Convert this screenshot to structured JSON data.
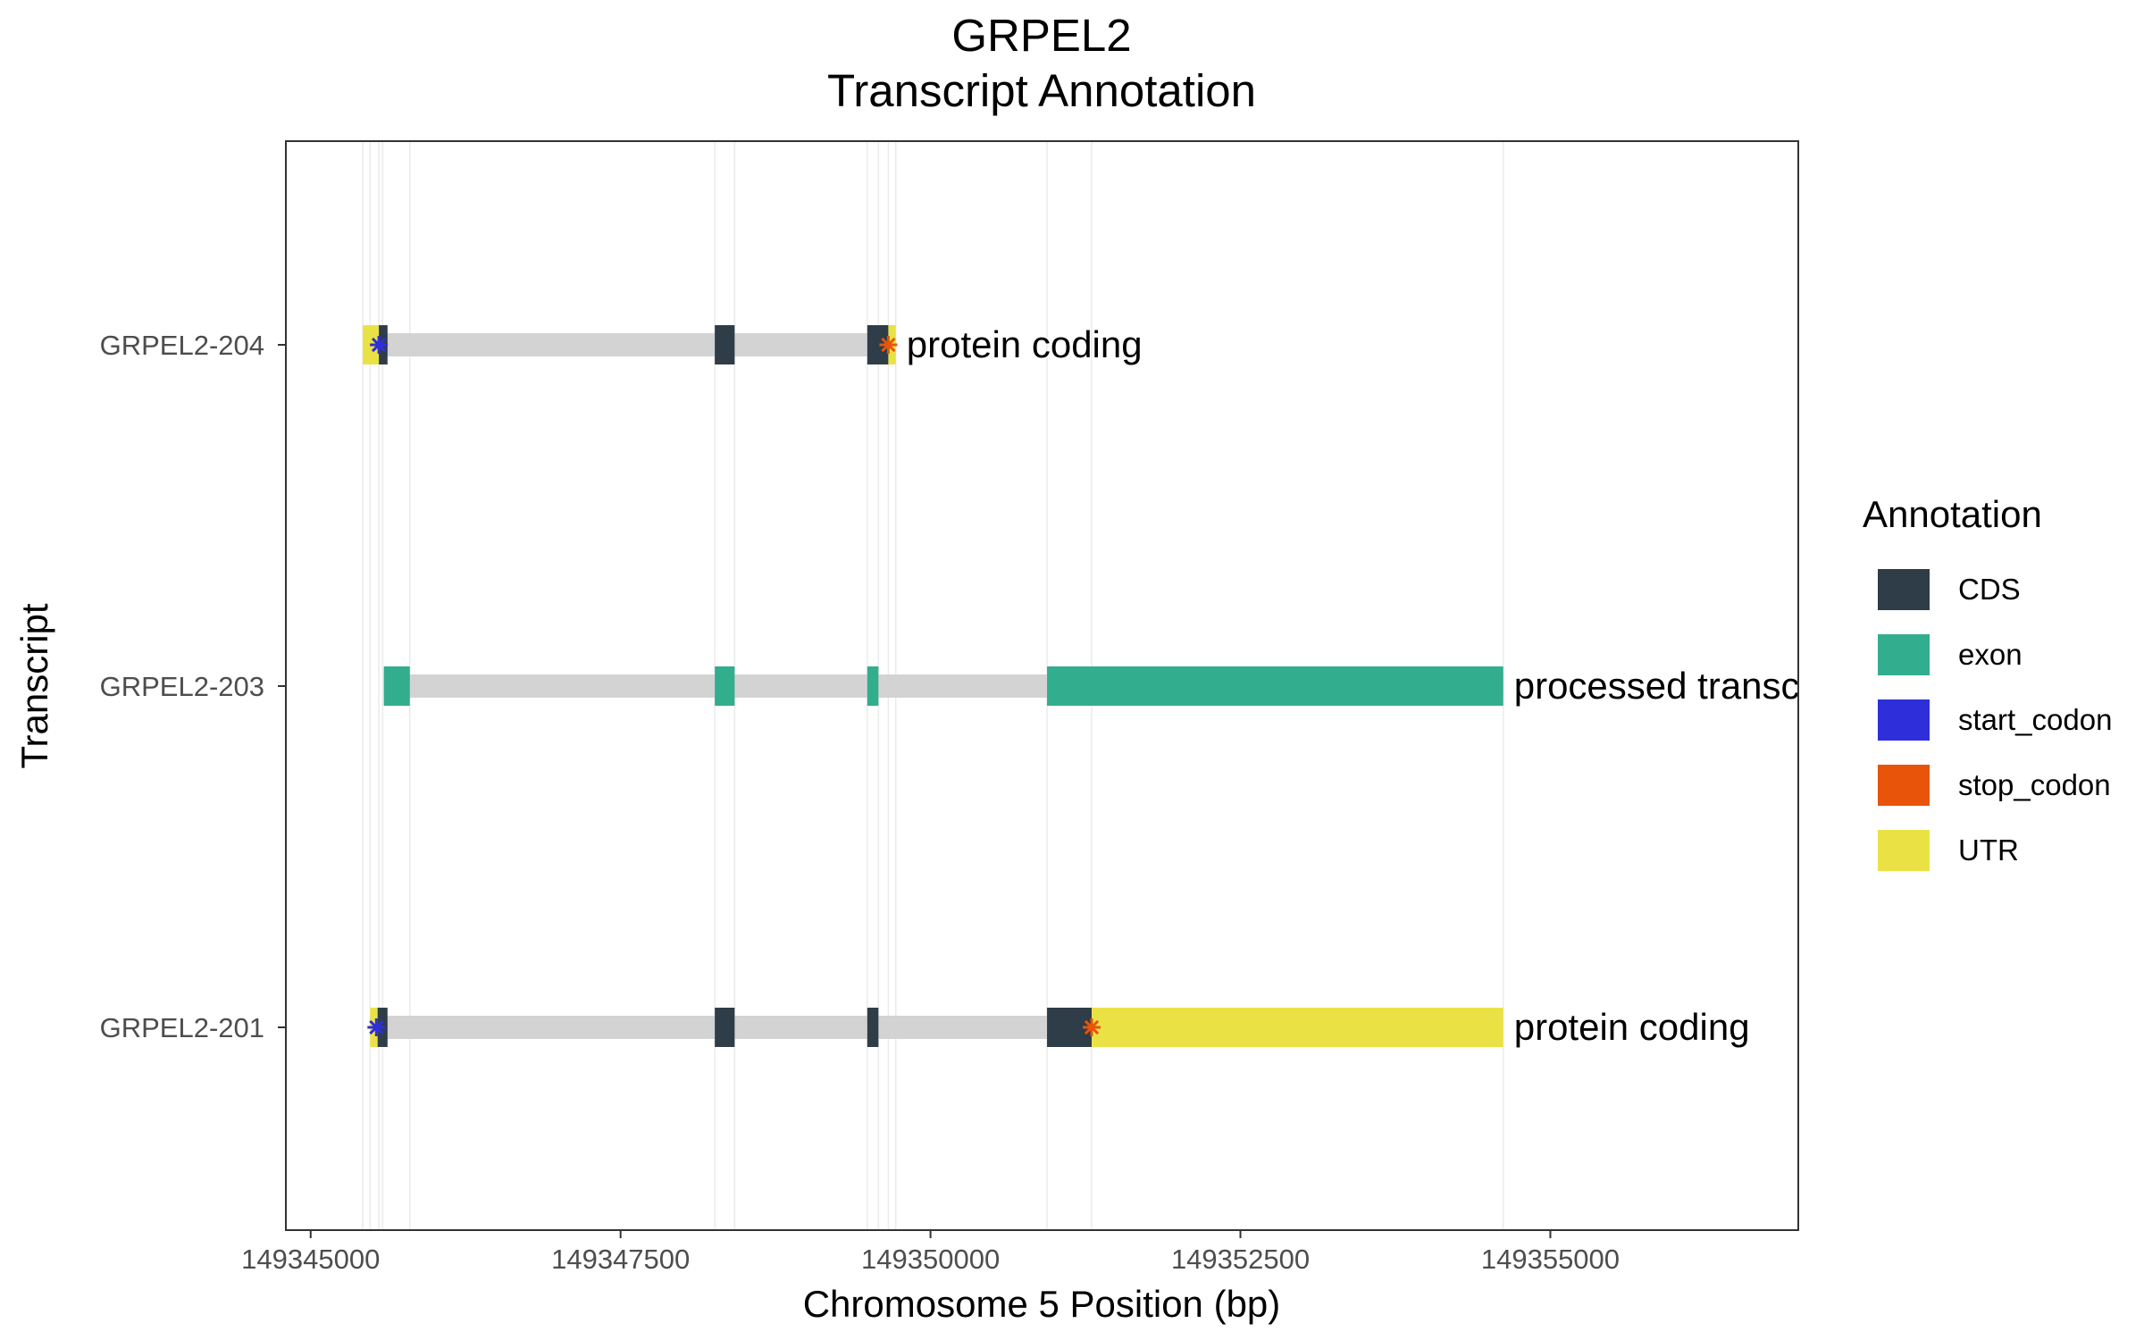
{
  "chart_data": {
    "type": "gene-structure",
    "title": [
      "GRPEL2",
      "Transcript Annotation"
    ],
    "xlabel": "Chromosome 5 Position (bp)",
    "ylabel": "Transcript",
    "xlim": [
      149344800,
      149357000
    ],
    "x_ticks": [
      149345000,
      149347500,
      149350000,
      149352500,
      149355000
    ],
    "x_tick_labels": [
      "149345000",
      "149347500",
      "149350000",
      "149352500",
      "149355000"
    ],
    "vertical_gridlines_bp": [
      149345420,
      149345480,
      149345550,
      149345580,
      149345800,
      149348260,
      149348420,
      149349490,
      149349580,
      149349660,
      149349720,
      149350940,
      149351300,
      149354620
    ],
    "legend": {
      "title": "Annotation",
      "position": "right",
      "items": [
        {
          "label": "CDS",
          "color": "#2E3D48"
        },
        {
          "label": "exon",
          "color": "#32AD8D"
        },
        {
          "label": "start_codon",
          "color": "#2E2EDB"
        },
        {
          "label": "stop_codon",
          "color": "#E8540A"
        },
        {
          "label": "UTR",
          "color": "#EAE245"
        }
      ]
    },
    "intron_color": "#D3D3D3",
    "transcripts": [
      {
        "name": "GRPEL2-204",
        "biotype_label": "protein coding",
        "span": [
          149345420,
          149349720
        ],
        "features": [
          {
            "type": "UTR",
            "start": 149345420,
            "end": 149345550
          },
          {
            "type": "CDS",
            "start": 149345550,
            "end": 149345620
          },
          {
            "type": "CDS",
            "start": 149348260,
            "end": 149348420
          },
          {
            "type": "CDS",
            "start": 149349490,
            "end": 149349660
          },
          {
            "type": "UTR",
            "start": 149349660,
            "end": 149349720
          }
        ],
        "start_codon": 149345550,
        "stop_codon": 149349660
      },
      {
        "name": "GRPEL2-203",
        "biotype_label": "processed transcript",
        "span": [
          149345590,
          149354620
        ],
        "features": [
          {
            "type": "exon",
            "start": 149345590,
            "end": 149345800
          },
          {
            "type": "exon",
            "start": 149348260,
            "end": 149348420
          },
          {
            "type": "exon",
            "start": 149349490,
            "end": 149349580
          },
          {
            "type": "exon",
            "start": 149350940,
            "end": 149354620
          }
        ]
      },
      {
        "name": "GRPEL2-201",
        "biotype_label": "protein coding",
        "span": [
          149345480,
          149354620
        ],
        "features": [
          {
            "type": "UTR",
            "start": 149345480,
            "end": 149345540
          },
          {
            "type": "CDS",
            "start": 149345540,
            "end": 149345620
          },
          {
            "type": "CDS",
            "start": 149348260,
            "end": 149348420
          },
          {
            "type": "CDS",
            "start": 149349490,
            "end": 149349580
          },
          {
            "type": "CDS",
            "start": 149350940,
            "end": 149351300
          },
          {
            "type": "UTR",
            "start": 149351300,
            "end": 149354620
          }
        ],
        "start_codon": 149345530,
        "stop_codon": 149351300
      }
    ]
  }
}
